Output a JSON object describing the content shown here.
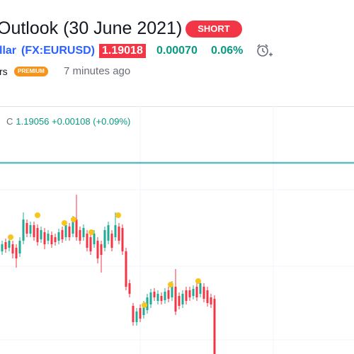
{
  "header": {
    "title": "Outlook (30 June 2021)",
    "badge": "SHORT"
  },
  "symbol": {
    "name_fragment": "llar",
    "ticker": "(FX:EURUSD)",
    "price": "1.19018",
    "change": "0.00070",
    "change_percent": "0.06%"
  },
  "author": {
    "name_fragment": "rs",
    "badge": "PREMIUM",
    "time": "7 minutes ago"
  },
  "chart": {
    "legend": {
      "label": "C",
      "close": "1.19056",
      "change": "+0.00108",
      "change_percent": "(+0.09%)"
    }
  }
}
